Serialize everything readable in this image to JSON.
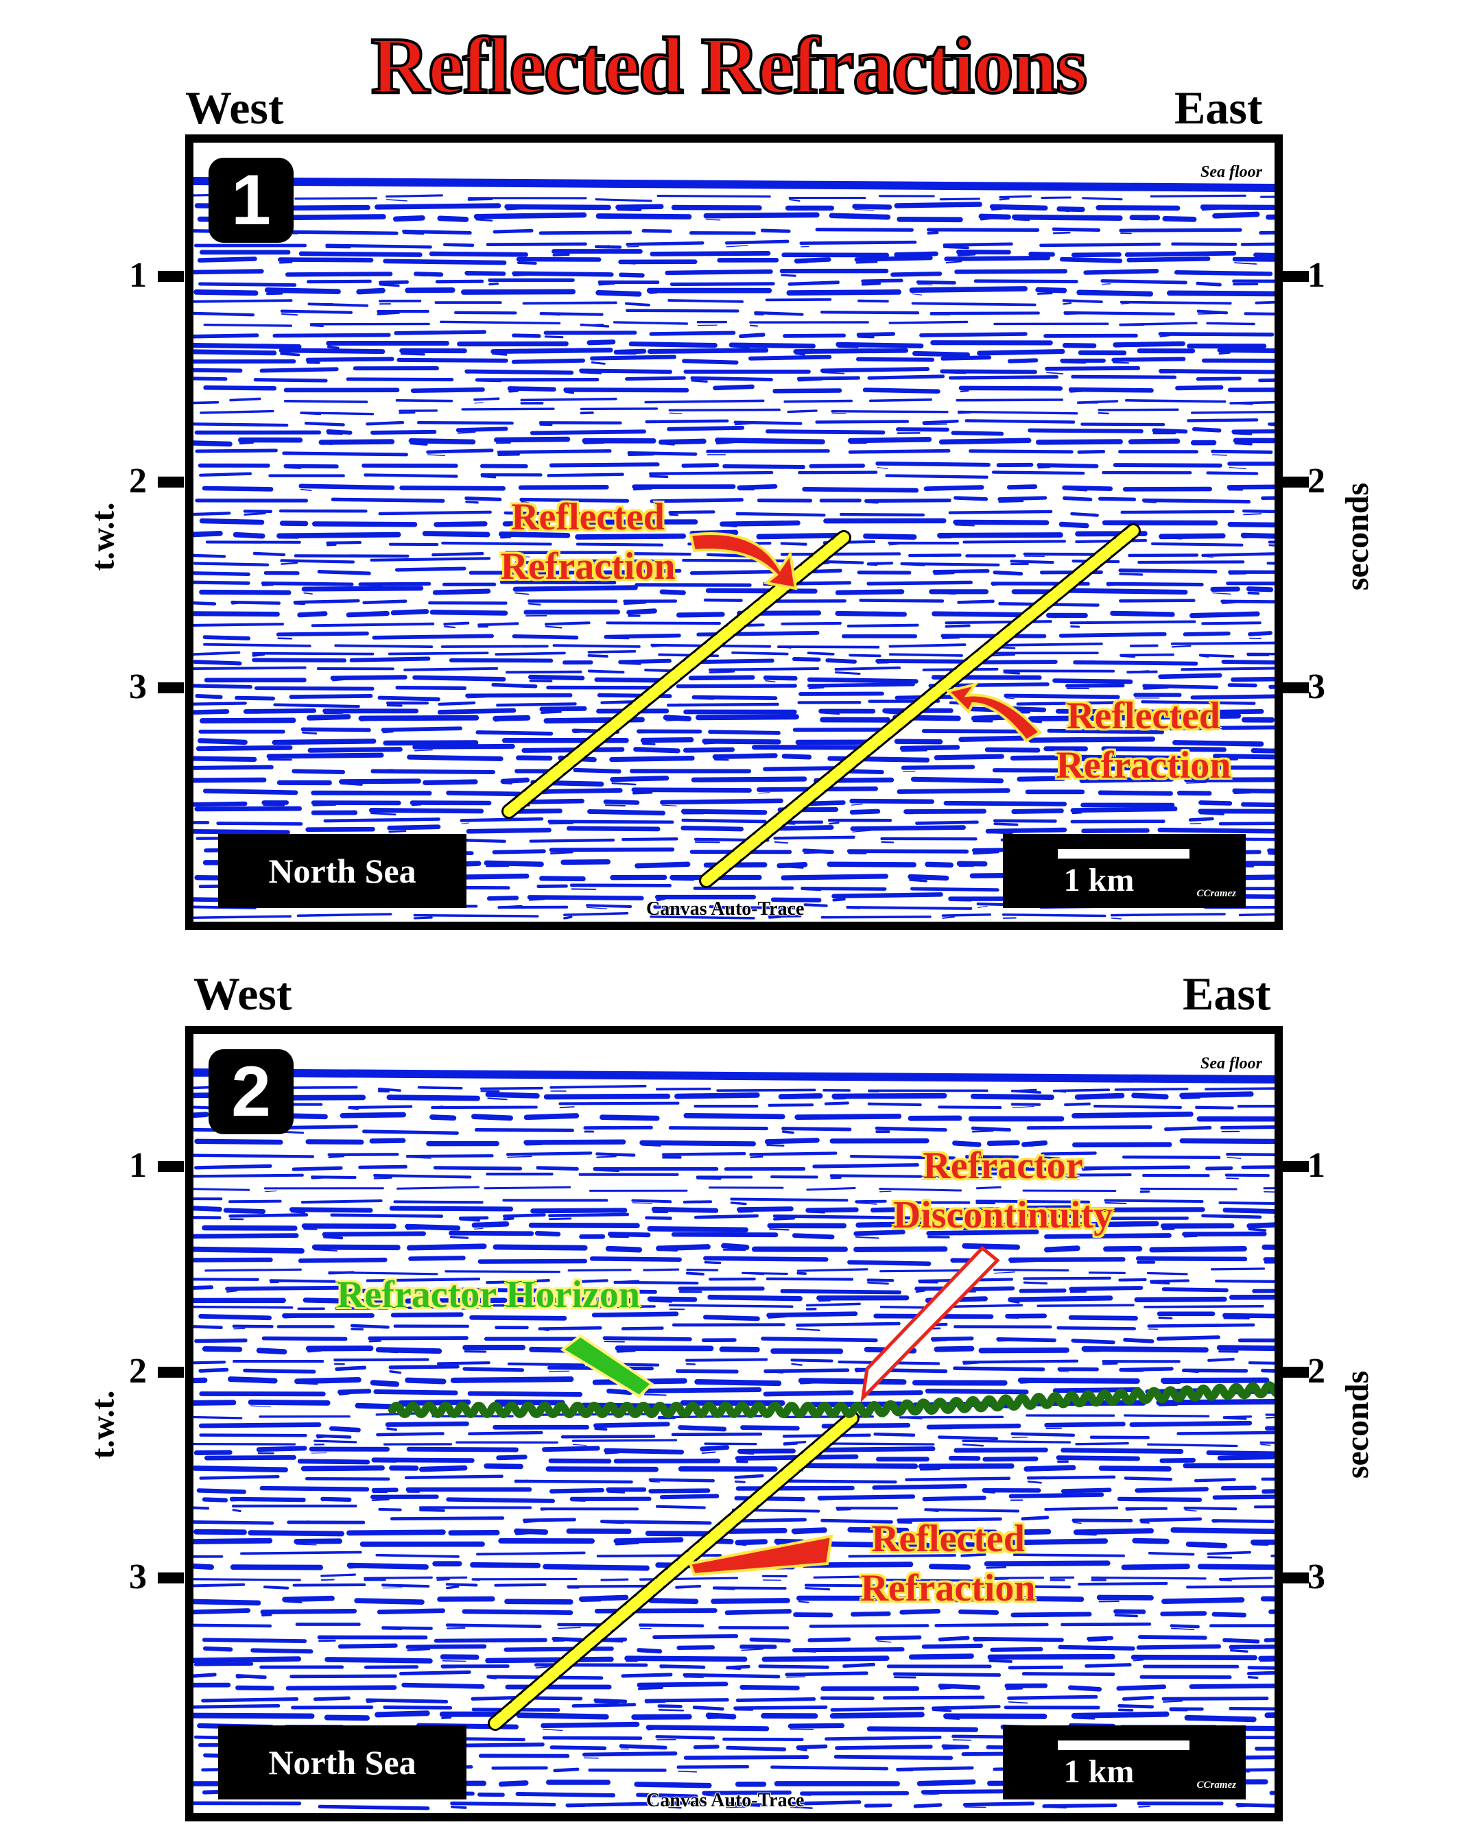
{
  "title": "Reflected Refractions",
  "panels": [
    {
      "number": "1",
      "west": "West",
      "east": "East",
      "sea_floor": "Sea floor",
      "region": "North Sea",
      "scale": "1 km",
      "credit": "CCramez",
      "trace_credit": "Canvas Auto-Trace",
      "axis_left": "t.w.t.",
      "axis_right": "seconds",
      "ticks": [
        "1",
        "2",
        "3"
      ],
      "annotations": {
        "a": "Reflected Refraction",
        "b": "Reflected Refraction"
      }
    },
    {
      "number": "2",
      "west": "West",
      "east": "East",
      "sea_floor": "Sea floor",
      "region": "North Sea",
      "scale": "1 km",
      "credit": "CCramez",
      "trace_credit": "Canvas Auto-Trace",
      "axis_left": "t.w.t.",
      "axis_right": "seconds",
      "ticks": [
        "1",
        "2",
        "3"
      ],
      "annotations": {
        "horizon": "Refractor  Horizon",
        "discontinuity": "Refractor Discontinuity",
        "reflected": "Reflected Refraction"
      }
    }
  ],
  "colors": {
    "seismic": "#0a1ee0",
    "fault": "#ffff2e",
    "horizon": "#1f6e12",
    "annotation_text": "#e8271c",
    "annotation_halo": "#ffe640"
  }
}
